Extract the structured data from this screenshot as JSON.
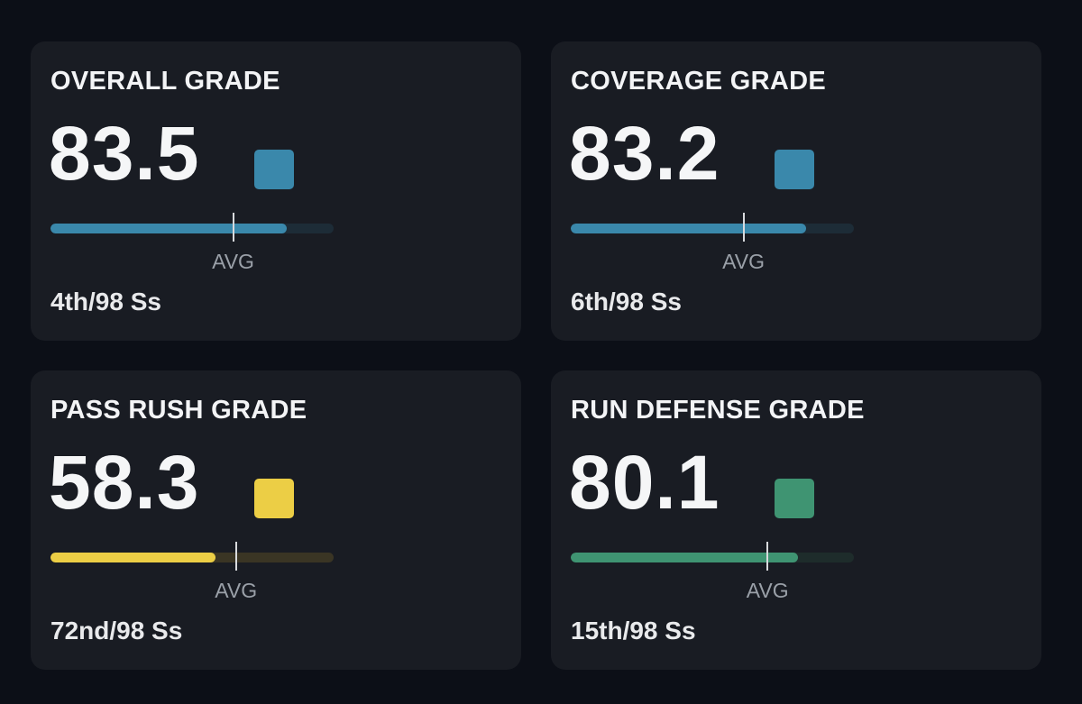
{
  "cards": [
    {
      "title": "OVERALL GRADE",
      "value": "83.5",
      "rank": "4th/98 Ss",
      "avg_label": "AVG",
      "fill_fraction": 0.835,
      "avg_fraction": 0.645,
      "color": "#3a88ab",
      "track_color": "#1d2c37"
    },
    {
      "title": "COVERAGE GRADE",
      "value": "83.2",
      "rank": "6th/98 Ss",
      "avg_label": "AVG",
      "fill_fraction": 0.832,
      "avg_fraction": 0.61,
      "color": "#3a88ab",
      "track_color": "#1d2c37"
    },
    {
      "title": "PASS RUSH GRADE",
      "value": "58.3",
      "rank": "72nd/98 Ss",
      "avg_label": "AVG",
      "fill_fraction": 0.583,
      "avg_fraction": 0.655,
      "color": "#ecce45",
      "track_color": "#3a3524"
    },
    {
      "title": "RUN DEFENSE GRADE",
      "value": "80.1",
      "rank": "15th/98 Ss",
      "avg_label": "AVG",
      "fill_fraction": 0.801,
      "avg_fraction": 0.695,
      "color": "#3f9472",
      "track_color": "#1e2c2b"
    }
  ]
}
